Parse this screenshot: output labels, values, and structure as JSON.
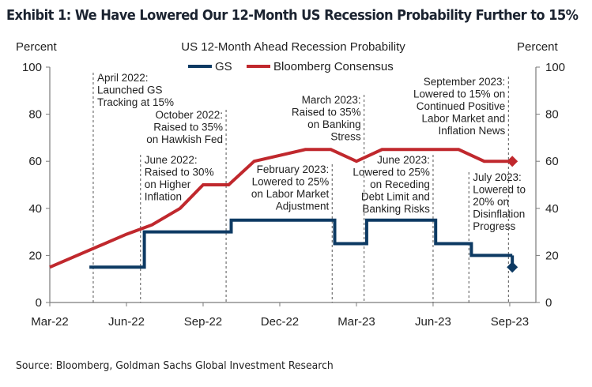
{
  "header": {
    "title": "Exhibit 1: We Have Lowered Our 12-Month US Recession Probability Further to 15%"
  },
  "footer": {
    "source": "Source: Bloomberg, Goldman Sachs Global Investment Research"
  },
  "colors": {
    "gs": "#0d3a63",
    "bloomberg": "#c0282d",
    "axis": "#7a7a7a"
  },
  "chart_data": {
    "type": "line",
    "title": "US 12-Month Ahead Recession Probability",
    "ylabel_left": "Percent",
    "ylabel_right": "Percent",
    "xlabel": "",
    "ylim": [
      0,
      100
    ],
    "yticks": [
      0,
      20,
      40,
      60,
      80,
      100
    ],
    "x_unit": "months since Mar-22",
    "xlim": [
      0,
      19
    ],
    "xticks": [
      {
        "m": 0,
        "label": "Mar-22"
      },
      {
        "m": 3,
        "label": "Jun-22"
      },
      {
        "m": 6,
        "label": "Sep-22"
      },
      {
        "m": 9,
        "label": "Dec-22"
      },
      {
        "m": 12,
        "label": "Mar-23"
      },
      {
        "m": 15,
        "label": "Jun-23"
      },
      {
        "m": 18,
        "label": "Sep-23"
      }
    ],
    "grid": false,
    "legend": {
      "position": "top-center",
      "entries": [
        "GS",
        "Bloomberg Consensus"
      ]
    },
    "series": [
      {
        "name": "GS",
        "style": "step",
        "points": [
          [
            1.55,
            15
          ],
          [
            3.7,
            15
          ],
          [
            3.7,
            30
          ],
          [
            7.1,
            30
          ],
          [
            7.1,
            35
          ],
          [
            11.15,
            35
          ],
          [
            11.15,
            25
          ],
          [
            12.4,
            25
          ],
          [
            12.4,
            35
          ],
          [
            15.1,
            35
          ],
          [
            15.1,
            25
          ],
          [
            16.5,
            25
          ],
          [
            16.5,
            20
          ],
          [
            18.1,
            20
          ]
        ],
        "final_marker": [
          18.1,
          15
        ]
      },
      {
        "name": "Bloomberg Consensus",
        "style": "line",
        "points": [
          [
            0,
            15
          ],
          [
            3,
            29
          ],
          [
            4,
            33
          ],
          [
            5.1,
            40
          ],
          [
            6,
            50
          ],
          [
            7,
            50
          ],
          [
            8,
            60
          ],
          [
            10,
            65
          ],
          [
            11,
            65
          ],
          [
            12,
            60
          ],
          [
            13,
            65
          ],
          [
            16,
            65
          ],
          [
            17,
            60
          ],
          [
            18.1,
            60
          ]
        ],
        "final_marker": [
          18.1,
          60
        ]
      }
    ],
    "annotations": [
      {
        "m": 1.7,
        "lines": [
          "April 2022:",
          "Launched GS",
          "Tracking at 15%"
        ],
        "align": "left"
      },
      {
        "m": 3.55,
        "lines": [
          "June 2022:",
          "Raised to 30%",
          "on Higher",
          "Inflation"
        ],
        "align": "left"
      },
      {
        "m": 6.9,
        "lines": [
          "October 2022:",
          "Raised to 35%",
          "on Hawkish Fed"
        ],
        "align": "right"
      },
      {
        "m": 11.05,
        "lines": [
          "February 2023:",
          "Lowered to 25%",
          "on Labor Market",
          "Adjustment"
        ],
        "align": "right"
      },
      {
        "m": 12.3,
        "lines": [
          "March 2023:",
          "Raised to 35%",
          "on Banking",
          "Stress"
        ],
        "align": "right"
      },
      {
        "m": 15.0,
        "lines": [
          "June 2023:",
          "Lowered to 25%",
          "on Receding",
          "Debt Limit and",
          "Banking Risks"
        ],
        "align": "right"
      },
      {
        "m": 16.4,
        "lines": [
          "July 2023:",
          "Lowered to",
          "20% on",
          "Disinflation",
          "Progress"
        ],
        "align": "left"
      },
      {
        "m": 17.95,
        "lines": [
          "September 2023:",
          "Lowered to 15% on",
          "Continued Positive",
          "Labor Market and",
          "Inflation News"
        ],
        "align": "right"
      }
    ]
  }
}
